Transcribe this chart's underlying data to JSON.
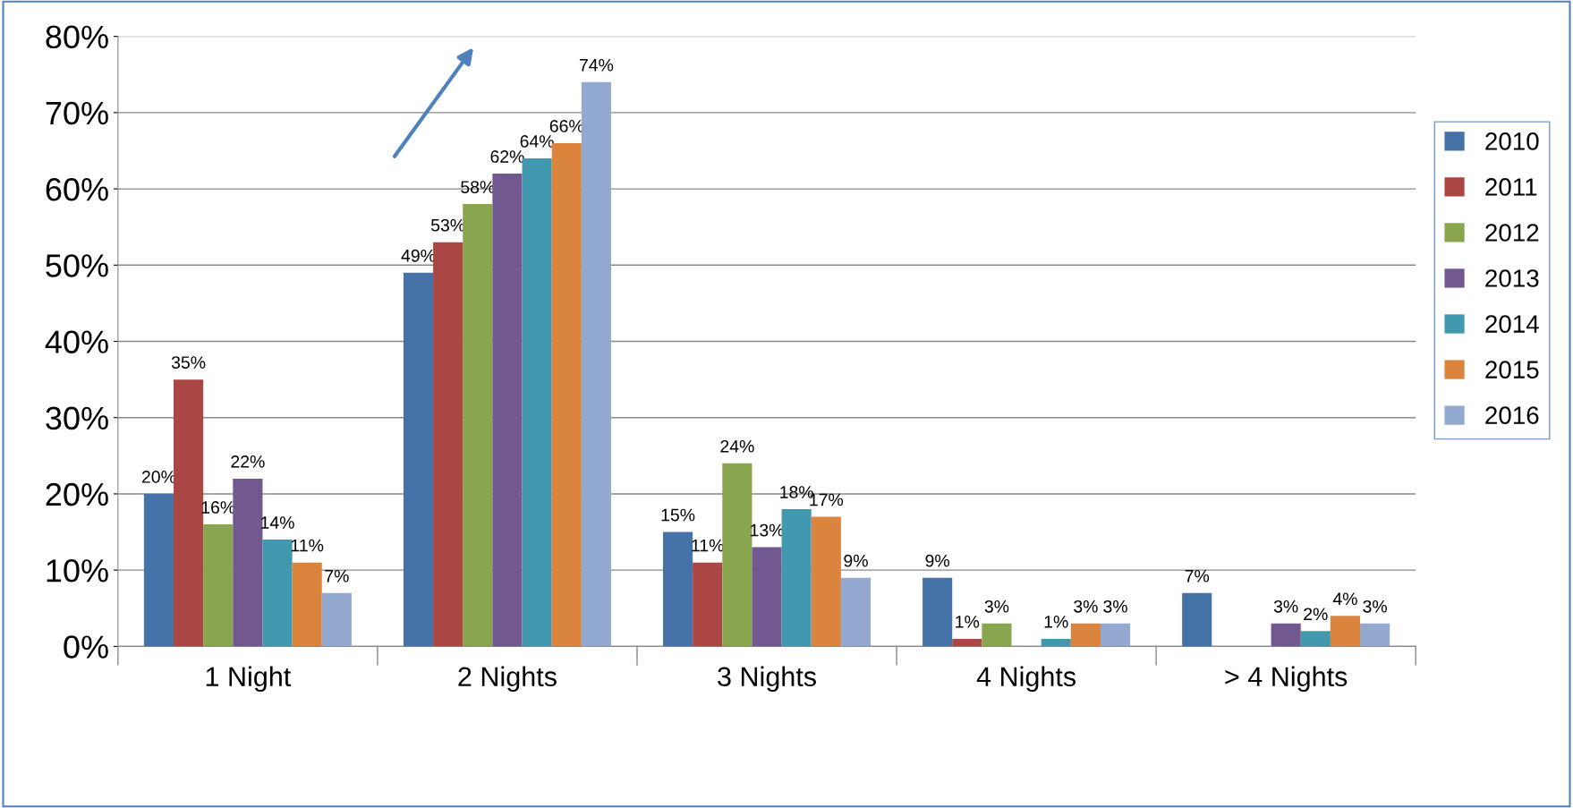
{
  "chart_data": {
    "type": "bar",
    "categories": [
      "1 Night",
      "2 Nights",
      "3 Nights",
      "4 Nights",
      "> 4 Nights"
    ],
    "series": [
      {
        "name": "2010",
        "color": "#4572a7",
        "values": [
          20,
          49,
          15,
          9,
          7
        ],
        "value_labels": [
          "20%",
          "49%",
          "15%",
          "9%",
          "7%"
        ]
      },
      {
        "name": "2011",
        "color": "#aa4643",
        "values": [
          35,
          53,
          11,
          1,
          null
        ],
        "value_labels": [
          "35%",
          "53%",
          "11%",
          "1%",
          null
        ]
      },
      {
        "name": "2012",
        "color": "#89a54e",
        "values": [
          16,
          58,
          24,
          3,
          null
        ],
        "value_labels": [
          "16%",
          "58%",
          "24%",
          "3%",
          null
        ]
      },
      {
        "name": "2013",
        "color": "#71588f",
        "values": [
          22,
          62,
          13,
          null,
          3
        ],
        "value_labels": [
          "22%",
          "62%",
          "13%",
          null,
          "3%"
        ]
      },
      {
        "name": "2014",
        "color": "#4198af",
        "values": [
          14,
          64,
          18,
          1,
          2
        ],
        "value_labels": [
          "14%",
          "64%",
          "18%",
          "1%",
          "2%"
        ]
      },
      {
        "name": "2015",
        "color": "#db843d",
        "values": [
          11,
          66,
          17,
          3,
          4
        ],
        "value_labels": [
          "11%",
          "66%",
          "17%",
          "3%",
          "4%"
        ]
      },
      {
        "name": "2016",
        "color": "#93a9cf",
        "values": [
          7,
          74,
          9,
          3,
          3
        ],
        "value_labels": [
          "7%",
          "74%",
          "9%",
          "3%",
          "3%"
        ]
      }
    ],
    "ylim": [
      0,
      80
    ],
    "yticks": [
      {
        "value": 0,
        "label": "0%"
      },
      {
        "value": 10,
        "label": "10%"
      },
      {
        "value": 20,
        "label": "20%"
      },
      {
        "value": 30,
        "label": "30%"
      },
      {
        "value": 40,
        "label": "40%"
      },
      {
        "value": 50,
        "label": "50%"
      },
      {
        "value": 60,
        "label": "60%"
      },
      {
        "value": 70,
        "label": "70%"
      },
      {
        "value": 80,
        "label": "80%"
      }
    ],
    "grid": "y",
    "legend": "right"
  }
}
